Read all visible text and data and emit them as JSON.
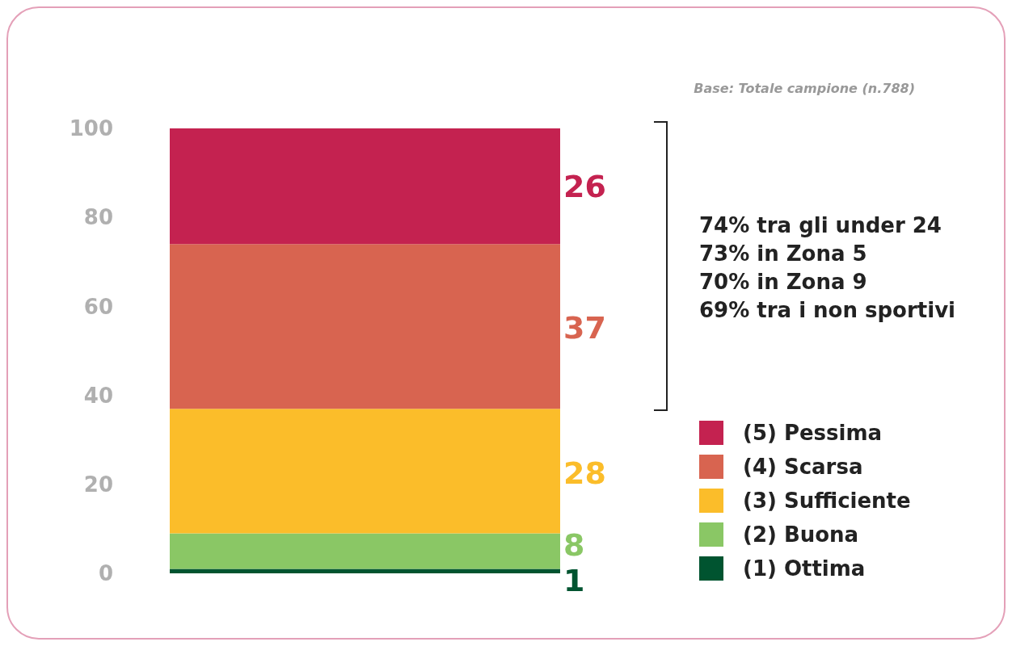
{
  "chart_data": {
    "type": "bar",
    "stacked": true,
    "categories": [
      null
    ],
    "series": [
      {
        "name": "(1) Ottima",
        "color": "#005430",
        "values": [
          1
        ]
      },
      {
        "name": "(2) Buona",
        "color": "#8ac765",
        "values": [
          8
        ]
      },
      {
        "name": "(3) Sufficiente",
        "color": "#fbbd2a",
        "values": [
          28
        ]
      },
      {
        "name": "(4) Scarsa",
        "color": "#d86450",
        "values": [
          37
        ]
      },
      {
        "name": "(5) Pessima",
        "color": "#c42250",
        "values": [
          26
        ]
      }
    ],
    "ylim": [
      0,
      100
    ],
    "yticks": [
      0,
      20,
      40,
      60,
      80,
      100
    ],
    "grid": false,
    "legend": "right",
    "data_labels": true,
    "annotations": [
      "Base: Totale campione (n.788)",
      "74% tra gli under 24",
      "73% in Zona 5",
      "70% in Zona 9",
      "69% tra i non sportivi"
    ]
  }
}
